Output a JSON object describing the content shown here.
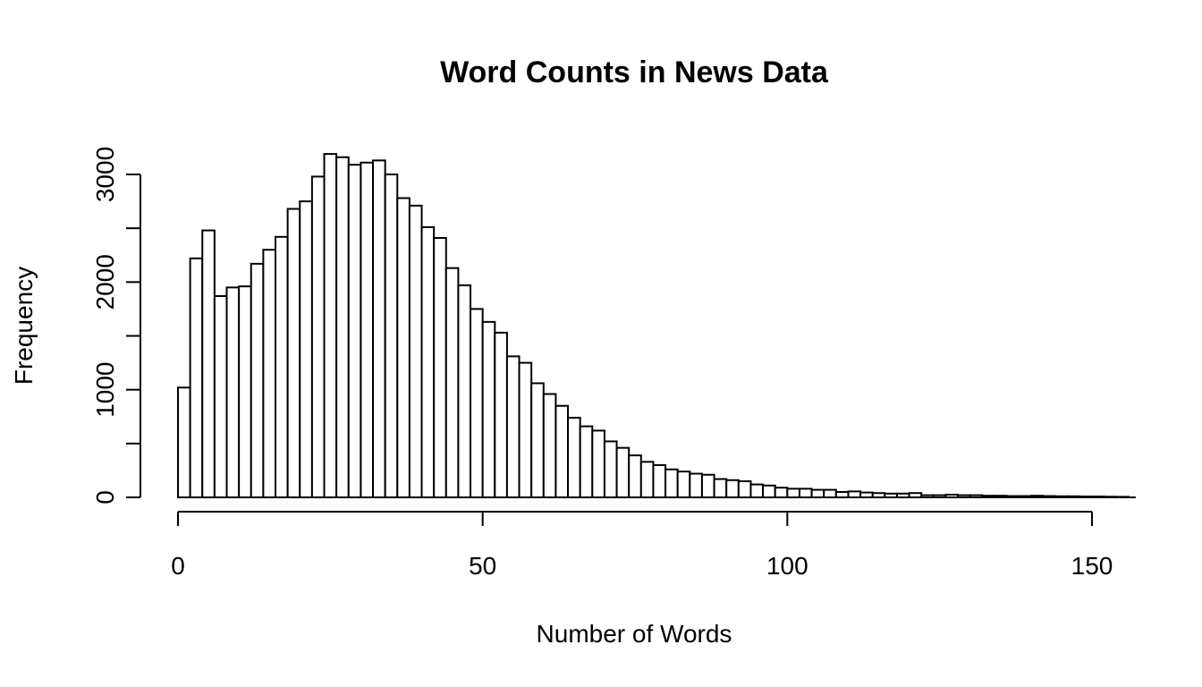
{
  "chart_data": {
    "type": "bar",
    "title": "Word Counts in News Data",
    "xlabel": "Number of Words",
    "ylabel": "Frequency",
    "bin_width": 2,
    "bin_start": 0,
    "xlim": [
      0,
      156
    ],
    "ylim": [
      0,
      3200
    ],
    "x_ticks": [
      0,
      50,
      100,
      150
    ],
    "y_ticks": [
      0,
      500,
      1000,
      1500,
      2000,
      2500,
      3000
    ],
    "y_tick_labels": [
      "0",
      "",
      "1000",
      "",
      "2000",
      "",
      "3000"
    ],
    "values": [
      1020,
      2220,
      2480,
      1870,
      1950,
      1960,
      2170,
      2300,
      2420,
      2680,
      2750,
      2980,
      3190,
      3160,
      3090,
      3110,
      3130,
      3000,
      2780,
      2710,
      2510,
      2410,
      2130,
      1970,
      1750,
      1630,
      1530,
      1310,
      1250,
      1060,
      960,
      850,
      740,
      660,
      620,
      520,
      460,
      390,
      330,
      300,
      260,
      240,
      220,
      210,
      170,
      160,
      150,
      120,
      110,
      90,
      80,
      80,
      70,
      70,
      50,
      55,
      45,
      40,
      35,
      35,
      40,
      20,
      20,
      25,
      20,
      20,
      15,
      15,
      12,
      12,
      15,
      12,
      10,
      10,
      8,
      8,
      6,
      5
    ]
  }
}
